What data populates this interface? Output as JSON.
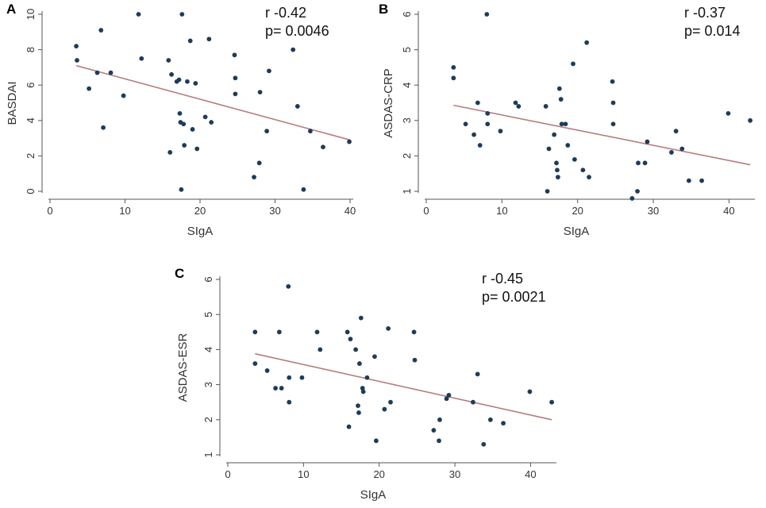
{
  "chart_data": [
    {
      "type": "scatter",
      "panel_label": "A",
      "xlabel": "SIgA",
      "ylabel": "BASDAI",
      "xlim": [
        0,
        40
      ],
      "ylim": [
        0,
        10
      ],
      "xticks": [
        0,
        10,
        20,
        30,
        40
      ],
      "yticks": [
        0,
        2,
        4,
        6,
        8,
        10
      ],
      "annotation_r": "r -0.42",
      "annotation_p": "p= 0.0046",
      "points": [
        [
          3.5,
          8.2
        ],
        [
          3.6,
          7.4
        ],
        [
          5.2,
          5.8
        ],
        [
          6.3,
          6.7
        ],
        [
          6.8,
          9.1
        ],
        [
          7.1,
          3.6
        ],
        [
          8.1,
          6.7
        ],
        [
          9.8,
          5.4
        ],
        [
          11.8,
          10.0
        ],
        [
          12.2,
          7.5
        ],
        [
          15.8,
          7.4
        ],
        [
          16.0,
          2.2
        ],
        [
          16.2,
          6.6
        ],
        [
          16.9,
          6.2
        ],
        [
          17.2,
          6.3
        ],
        [
          17.3,
          4.4
        ],
        [
          17.4,
          3.9
        ],
        [
          17.5,
          0.1
        ],
        [
          17.6,
          10.0
        ],
        [
          17.8,
          3.8
        ],
        [
          17.9,
          2.6
        ],
        [
          18.3,
          6.2
        ],
        [
          18.7,
          8.5
        ],
        [
          19.0,
          3.5
        ],
        [
          19.4,
          6.1
        ],
        [
          19.6,
          2.4
        ],
        [
          20.7,
          4.2
        ],
        [
          21.2,
          8.6
        ],
        [
          21.5,
          3.9
        ],
        [
          24.6,
          7.7
        ],
        [
          24.7,
          6.4
        ],
        [
          24.7,
          5.5
        ],
        [
          27.2,
          0.8
        ],
        [
          27.9,
          1.6
        ],
        [
          28.0,
          5.6
        ],
        [
          28.9,
          3.4
        ],
        [
          29.2,
          6.8
        ],
        [
          32.4,
          8.0
        ],
        [
          33.0,
          4.8
        ],
        [
          33.8,
          0.1
        ],
        [
          34.7,
          3.4
        ],
        [
          36.4,
          2.5
        ],
        [
          39.9,
          2.8
        ]
      ],
      "fit": {
        "x": [
          3.5,
          40
        ],
        "y": [
          7.1,
          2.9
        ]
      }
    },
    {
      "type": "scatter",
      "panel_label": "B",
      "xlabel": "SIgA",
      "ylabel": "ASDAS-CRP",
      "xlim": [
        0,
        43
      ],
      "ylim": [
        1,
        6
      ],
      "xticks": [
        0,
        10,
        20,
        30,
        40
      ],
      "yticks": [
        1,
        2,
        3,
        4,
        5,
        6
      ],
      "annotation_r": "r -0.37",
      "annotation_p": "p= 0.014",
      "points": [
        [
          3.6,
          4.5
        ],
        [
          3.6,
          4.2
        ],
        [
          5.2,
          2.9
        ],
        [
          6.3,
          2.6
        ],
        [
          6.8,
          3.5
        ],
        [
          7.1,
          2.3
        ],
        [
          8.0,
          6.0
        ],
        [
          8.1,
          3.2
        ],
        [
          8.1,
          2.9
        ],
        [
          9.8,
          2.7
        ],
        [
          11.8,
          3.5
        ],
        [
          12.2,
          3.4
        ],
        [
          15.8,
          3.4
        ],
        [
          16.0,
          1.0
        ],
        [
          16.2,
          2.2
        ],
        [
          16.9,
          2.6
        ],
        [
          17.2,
          1.8
        ],
        [
          17.3,
          1.6
        ],
        [
          17.4,
          1.4
        ],
        [
          17.6,
          3.9
        ],
        [
          17.8,
          3.6
        ],
        [
          17.9,
          2.9
        ],
        [
          18.4,
          2.9
        ],
        [
          18.7,
          2.3
        ],
        [
          19.4,
          4.6
        ],
        [
          19.6,
          1.9
        ],
        [
          20.7,
          1.6
        ],
        [
          21.2,
          5.2
        ],
        [
          21.5,
          1.4
        ],
        [
          24.6,
          4.1
        ],
        [
          24.7,
          3.5
        ],
        [
          24.7,
          2.9
        ],
        [
          27.2,
          0.8
        ],
        [
          27.9,
          1.0
        ],
        [
          28.0,
          1.8
        ],
        [
          28.9,
          1.8
        ],
        [
          29.2,
          2.4
        ],
        [
          32.4,
          2.1
        ],
        [
          33.0,
          2.7
        ],
        [
          33.8,
          2.2
        ],
        [
          34.7,
          1.3
        ],
        [
          36.4,
          1.3
        ],
        [
          39.9,
          3.2
        ],
        [
          42.8,
          3.0
        ]
      ],
      "fit": {
        "x": [
          3.6,
          42.8
        ],
        "y": [
          3.43,
          1.75
        ]
      }
    },
    {
      "type": "scatter",
      "panel_label": "C",
      "xlabel": "SIgA",
      "ylabel": "ASDAS-ESR",
      "xlim": [
        0,
        43
      ],
      "ylim": [
        1,
        6
      ],
      "xticks": [
        0,
        10,
        20,
        30,
        40
      ],
      "yticks": [
        1,
        2,
        3,
        4,
        5,
        6
      ],
      "annotation_r": "r -0.45",
      "annotation_p": "p= 0.0021",
      "points": [
        [
          3.6,
          4.5
        ],
        [
          3.6,
          3.6
        ],
        [
          5.2,
          3.4
        ],
        [
          6.3,
          2.9
        ],
        [
          6.8,
          4.5
        ],
        [
          7.1,
          2.9
        ],
        [
          8.0,
          5.8
        ],
        [
          8.1,
          3.2
        ],
        [
          8.1,
          2.5
        ],
        [
          9.8,
          3.2
        ],
        [
          11.8,
          4.5
        ],
        [
          12.2,
          4.0
        ],
        [
          15.8,
          4.5
        ],
        [
          16.0,
          1.8
        ],
        [
          16.2,
          4.3
        ],
        [
          16.9,
          4.0
        ],
        [
          17.2,
          2.4
        ],
        [
          17.3,
          2.2
        ],
        [
          17.4,
          3.6
        ],
        [
          17.6,
          4.9
        ],
        [
          17.8,
          2.9
        ],
        [
          17.9,
          2.8
        ],
        [
          18.4,
          3.2
        ],
        [
          19.4,
          3.8
        ],
        [
          19.6,
          1.4
        ],
        [
          20.7,
          2.3
        ],
        [
          21.2,
          4.6
        ],
        [
          21.5,
          2.5
        ],
        [
          24.6,
          4.5
        ],
        [
          24.7,
          3.7
        ],
        [
          27.2,
          1.7
        ],
        [
          27.9,
          1.4
        ],
        [
          28.0,
          2.0
        ],
        [
          28.9,
          2.6
        ],
        [
          29.2,
          2.7
        ],
        [
          32.4,
          2.5
        ],
        [
          33.0,
          3.3
        ],
        [
          33.8,
          1.3
        ],
        [
          34.7,
          2.0
        ],
        [
          36.4,
          1.9
        ],
        [
          39.9,
          2.8
        ],
        [
          42.8,
          2.5
        ]
      ],
      "fit": {
        "x": [
          3.6,
          42.8
        ],
        "y": [
          3.88,
          2.0
        ]
      }
    }
  ]
}
